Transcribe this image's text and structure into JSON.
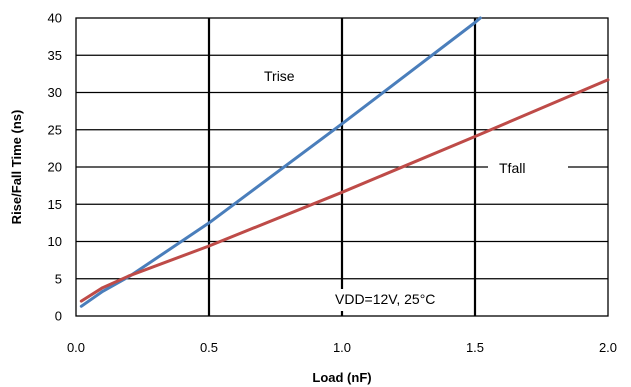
{
  "chart_data": {
    "type": "line",
    "xlabel": "Load (nF)",
    "ylabel": "Rise/Fall Time (ns)",
    "xlim": [
      0,
      2.0
    ],
    "ylim": [
      0,
      40
    ],
    "x_ticks": [
      "0.0",
      "0.5",
      "1.0",
      "1.5",
      "2.0"
    ],
    "y_ticks": [
      "0",
      "5",
      "10",
      "15",
      "20",
      "25",
      "30",
      "35",
      "40"
    ],
    "grid": true,
    "series": [
      {
        "name": "Trise",
        "color": "#4a7ebb",
        "x": [
          0.02,
          0.1,
          0.2,
          0.5,
          1.0,
          1.5,
          1.52
        ],
        "y": [
          1.3,
          3.3,
          5.3,
          12.5,
          25.8,
          39.4,
          40.0
        ]
      },
      {
        "name": "Tfall",
        "color": "#be4b48",
        "x": [
          0.02,
          0.1,
          0.2,
          0.5,
          1.0,
          1.5,
          2.0
        ],
        "y": [
          2.0,
          3.8,
          5.4,
          9.4,
          16.6,
          24.1,
          31.7
        ]
      }
    ],
    "annotations": [
      "VDD=12V, 25°C"
    ]
  }
}
